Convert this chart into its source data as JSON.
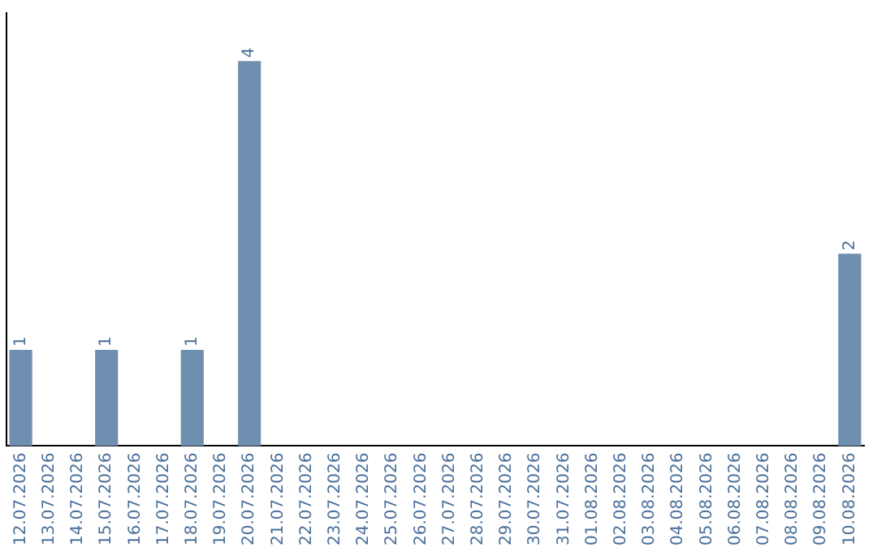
{
  "chart_data": {
    "type": "bar",
    "categories": [
      "12.07.2026",
      "13.07.2026",
      "14.07.2026",
      "15.07.2026",
      "16.07.2026",
      "17.07.2026",
      "18.07.2026",
      "19.07.2026",
      "20.07.2026",
      "21.07.2026",
      "22.07.2026",
      "23.07.2026",
      "24.07.2026",
      "25.07.2026",
      "26.07.2026",
      "27.07.2026",
      "28.07.2026",
      "29.07.2026",
      "30.07.2026",
      "31.07.2026",
      "01.08.2026",
      "02.08.2026",
      "03.08.2026",
      "04.08.2026",
      "05.08.2026",
      "06.08.2026",
      "07.08.2026",
      "08.08.2026",
      "09.08.2026",
      "10.08.2026"
    ],
    "values": [
      1,
      0,
      0,
      1,
      0,
      0,
      1,
      0,
      4,
      0,
      0,
      0,
      0,
      0,
      0,
      0,
      0,
      0,
      0,
      0,
      0,
      0,
      0,
      0,
      0,
      0,
      0,
      0,
      0,
      2
    ],
    "value_labels": [
      "1",
      null,
      null,
      "1",
      null,
      null,
      "1",
      null,
      "4",
      null,
      null,
      null,
      null,
      null,
      null,
      null,
      null,
      null,
      null,
      null,
      null,
      null,
      null,
      null,
      null,
      null,
      null,
      null,
      null,
      "2"
    ],
    "color": "#6e8fb0",
    "tick_labels": "x",
    "grid": false,
    "legend": false
  }
}
